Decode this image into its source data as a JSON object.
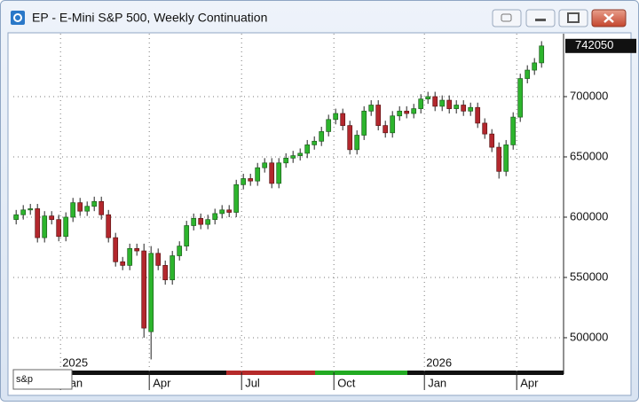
{
  "window_title": "EP - E-Mini S&P 500, Weekly Continuation",
  "search_text": "s&p",
  "chart_data": {
    "type": "candlestick",
    "up_color": "#2db52d",
    "down_color": "#b3272d",
    "grid": true,
    "ylim": [
      471300,
      752200
    ],
    "yticks": [
      500000,
      550000,
      600000,
      650000,
      700000
    ],
    "xlim": [
      -0.4,
      77.1
    ],
    "xticks": [
      {
        "value": 6.25,
        "label": "Jan"
      },
      {
        "value": 18.75,
        "label": "Apr"
      },
      {
        "value": 31.75,
        "label": "Jul"
      },
      {
        "value": 44.75,
        "label": "Oct"
      },
      {
        "value": 57.5,
        "label": "Jan"
      },
      {
        "value": 70.5,
        "label": "Apr"
      }
    ],
    "year_labels": [
      {
        "value": 6.25,
        "label": "2025"
      },
      {
        "value": 57.5,
        "label": "2026"
      }
    ],
    "open": [
      598000,
      602000,
      606000,
      607000,
      583000,
      601000,
      598000,
      584000,
      600000,
      612000,
      605000,
      609000,
      613000,
      602000,
      583000,
      563000,
      560000,
      574000,
      572000,
      505000,
      570000,
      560000,
      548000,
      568000,
      576000,
      593000,
      599000,
      594000,
      598000,
      603000,
      606000,
      604000,
      627000,
      632000,
      630000,
      641000,
      645000,
      628000,
      645000,
      649000,
      651000,
      653000,
      660000,
      663000,
      671000,
      681000,
      686000,
      676000,
      656000,
      668000,
      688000,
      693000,
      676000,
      670000,
      684000,
      688000,
      686000,
      690000,
      698000,
      700000,
      692000,
      697000,
      690000,
      693000,
      688000,
      691000,
      678000,
      669000,
      658000,
      638000,
      660000,
      683000,
      715000,
      722000,
      728000
    ],
    "high": [
      606000,
      610000,
      611000,
      611000,
      605000,
      605000,
      602000,
      604000,
      616000,
      616000,
      613000,
      617000,
      617000,
      606000,
      587000,
      567000,
      578000,
      578000,
      578000,
      576000,
      574000,
      564000,
      572000,
      580000,
      597000,
      603000,
      603000,
      602000,
      607000,
      610000,
      610000,
      631000,
      636000,
      636000,
      645000,
      649000,
      649000,
      649000,
      653000,
      655000,
      657000,
      664000,
      667000,
      675000,
      685000,
      690000,
      690000,
      680000,
      672000,
      692000,
      697000,
      697000,
      680000,
      688000,
      692000,
      692000,
      694000,
      702000,
      704000,
      704000,
      701000,
      701000,
      697000,
      697000,
      695000,
      695000,
      682000,
      673000,
      662000,
      664000,
      687000,
      719000,
      726000,
      732000,
      746000
    ],
    "low": [
      594000,
      598000,
      602000,
      579000,
      579000,
      594000,
      580000,
      580000,
      596000,
      601000,
      601000,
      605000,
      598000,
      579000,
      559000,
      556000,
      556000,
      568000,
      500000,
      482000,
      556000,
      544000,
      544000,
      564000,
      572000,
      589000,
      590000,
      590000,
      594000,
      599000,
      600000,
      600000,
      623000,
      626000,
      626000,
      637000,
      624000,
      624000,
      641000,
      645000,
      647000,
      649000,
      656000,
      659000,
      667000,
      677000,
      672000,
      652000,
      652000,
      664000,
      684000,
      672000,
      666000,
      666000,
      680000,
      682000,
      682000,
      686000,
      694000,
      688000,
      688000,
      686000,
      686000,
      684000,
      684000,
      674000,
      665000,
      654000,
      632000,
      634000,
      656000,
      679000,
      711000,
      718000,
      724000
    ],
    "close": [
      602000,
      606000,
      607000,
      583000,
      601000,
      598000,
      584000,
      600000,
      612000,
      605000,
      609000,
      613000,
      602000,
      583000,
      563000,
      560000,
      574000,
      572000,
      508000,
      570000,
      560000,
      548000,
      568000,
      576000,
      593000,
      599000,
      594000,
      598000,
      603000,
      606000,
      604000,
      627000,
      632000,
      630000,
      641000,
      645000,
      628000,
      645000,
      649000,
      651000,
      653000,
      660000,
      663000,
      671000,
      681000,
      686000,
      676000,
      656000,
      668000,
      688000,
      693000,
      676000,
      670000,
      684000,
      688000,
      686000,
      690000,
      698000,
      700000,
      692000,
      697000,
      690000,
      693000,
      688000,
      691000,
      678000,
      669000,
      658000,
      638000,
      660000,
      683000,
      715000,
      722000,
      728000,
      742050
    ]
  }
}
